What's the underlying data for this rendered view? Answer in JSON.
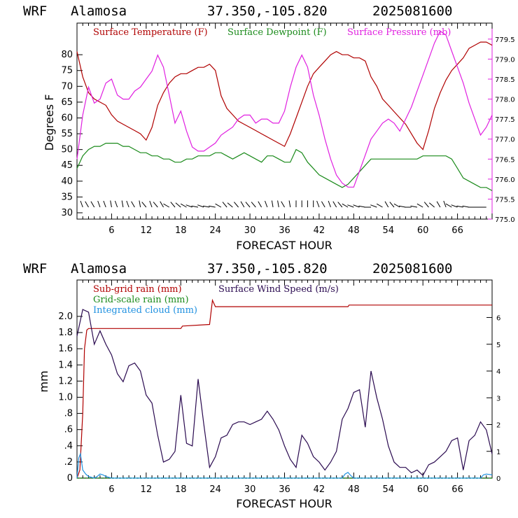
{
  "header": {
    "model": "WRF",
    "site": "Alamosa",
    "coords": "37.350,-105.820",
    "run": "2025081600"
  },
  "colors": {
    "temperature": "#b00000",
    "dewpoint": "#1a8a1a",
    "pressure": "#e020e0",
    "subgrid_rain": "#b00000",
    "gridscale_rain": "#1a8a1a",
    "cloud": "#1e90e0",
    "wind_speed": "#2a0a50"
  },
  "chart_data": [
    {
      "type": "line",
      "xlabel": "FORECAST HOUR",
      "ylabel": "Degrees F",
      "xlim": [
        0,
        72
      ],
      "ylim": [
        28,
        90
      ],
      "xticks": [
        6,
        12,
        18,
        24,
        30,
        36,
        42,
        48,
        54,
        60,
        66
      ],
      "yticks": [
        30,
        35,
        40,
        45,
        50,
        55,
        60,
        65,
        70,
        75,
        80
      ],
      "y2lim": [
        775.0,
        779.9
      ],
      "y2ticks": [
        "775.0",
        "775.5",
        "776.0",
        "776.5",
        "777.0",
        "777.5",
        "778.0",
        "778.5",
        "779.0",
        "779.5"
      ],
      "legend": [
        "Surface Temperature (F)",
        "Surface Dewpoint (F)",
        "Surface Pressure (mb)"
      ],
      "series": [
        {
          "name": "Surface Temperature (F)",
          "x": [
            0,
            1,
            2,
            3,
            4,
            5,
            6,
            7,
            8,
            9,
            10,
            11,
            12,
            13,
            14,
            15,
            16,
            17,
            18,
            19,
            20,
            21,
            22,
            23,
            24,
            25,
            26,
            27,
            28,
            29,
            30,
            31,
            32,
            33,
            34,
            35,
            36,
            37,
            38,
            39,
            40,
            41,
            42,
            43,
            44,
            45,
            46,
            47,
            48,
            49,
            50,
            51,
            52,
            53,
            54,
            55,
            56,
            57,
            58,
            59,
            60,
            61,
            62,
            63,
            64,
            65,
            66,
            67,
            68,
            69,
            70,
            71,
            72
          ],
          "y": [
            81,
            73,
            68,
            66,
            65,
            64,
            61,
            59,
            58,
            57,
            56,
            55,
            53,
            57,
            64,
            68,
            71,
            73,
            74,
            74,
            75,
            76,
            76,
            77,
            75,
            67,
            63,
            61,
            59,
            58,
            57,
            56,
            55,
            54,
            53,
            52,
            51,
            55,
            60,
            65,
            70,
            74,
            76,
            78,
            80,
            81,
            80,
            80,
            79,
            79,
            78,
            73,
            70,
            66,
            64,
            62,
            60,
            58,
            55,
            52,
            50,
            56,
            63,
            68,
            72,
            75,
            77,
            79,
            82,
            83,
            84,
            84,
            83
          ]
        },
        {
          "name": "Surface Dewpoint (F)",
          "x": [
            0,
            1,
            2,
            3,
            4,
            5,
            6,
            7,
            8,
            9,
            10,
            11,
            12,
            13,
            14,
            15,
            16,
            17,
            18,
            19,
            20,
            21,
            22,
            23,
            24,
            25,
            26,
            27,
            28,
            29,
            30,
            31,
            32,
            33,
            34,
            35,
            36,
            37,
            38,
            39,
            40,
            41,
            42,
            43,
            44,
            45,
            46,
            47,
            48,
            49,
            50,
            51,
            52,
            53,
            54,
            55,
            56,
            57,
            58,
            59,
            60,
            61,
            62,
            63,
            64,
            65,
            66,
            67,
            68,
            69,
            70,
            71,
            72
          ],
          "y": [
            44,
            48,
            50,
            51,
            51,
            52,
            52,
            52,
            51,
            51,
            50,
            49,
            49,
            48,
            48,
            47,
            47,
            46,
            46,
            47,
            47,
            48,
            48,
            48,
            49,
            49,
            48,
            47,
            48,
            49,
            48,
            47,
            46,
            48,
            48,
            47,
            46,
            46,
            50,
            49,
            46,
            44,
            42,
            41,
            40,
            39,
            38,
            39,
            41,
            43,
            45,
            47,
            47,
            47,
            47,
            47,
            47,
            47,
            47,
            47,
            48,
            48,
            48,
            48,
            48,
            47,
            44,
            41,
            40,
            39,
            38,
            38,
            37
          ]
        },
        {
          "name": "Surface Pressure (mb)",
          "x": [
            0,
            1,
            2,
            3,
            4,
            5,
            6,
            7,
            8,
            9,
            10,
            11,
            12,
            13,
            14,
            15,
            16,
            17,
            18,
            19,
            20,
            21,
            22,
            23,
            24,
            25,
            26,
            27,
            28,
            29,
            30,
            31,
            32,
            33,
            34,
            35,
            36,
            37,
            38,
            39,
            40,
            41,
            42,
            43,
            44,
            45,
            46,
            47,
            48,
            49,
            50,
            51,
            52,
            53,
            54,
            55,
            56,
            57,
            58,
            59,
            60,
            61,
            62,
            63,
            64,
            65,
            66,
            67,
            68,
            69,
            70,
            71,
            72
          ],
          "y": [
            776.5,
            777.6,
            778.3,
            777.9,
            778.0,
            778.4,
            778.5,
            778.1,
            778.0,
            778.0,
            778.2,
            778.3,
            778.5,
            778.7,
            779.1,
            778.8,
            778.1,
            777.4,
            777.7,
            777.2,
            776.8,
            776.7,
            776.7,
            776.8,
            776.9,
            777.1,
            777.2,
            777.3,
            777.5,
            777.6,
            777.6,
            777.4,
            777.5,
            777.5,
            777.4,
            777.4,
            777.7,
            778.3,
            778.8,
            779.1,
            778.8,
            778.1,
            777.6,
            777.0,
            776.5,
            776.1,
            775.9,
            775.8,
            775.8,
            776.2,
            776.6,
            777.0,
            777.2,
            777.4,
            777.5,
            777.4,
            777.2,
            777.5,
            777.8,
            778.2,
            778.6,
            779.0,
            779.4,
            779.7,
            779.6,
            779.2,
            778.8,
            778.4,
            777.9,
            777.5,
            777.1,
            777.3,
            777.6
          ]
        }
      ],
      "wind_barbs": {
        "note_free": true,
        "hours": [
          1,
          2,
          3,
          4,
          5,
          6,
          7,
          8,
          9,
          10,
          11,
          12,
          13,
          14,
          15,
          16,
          17,
          18,
          19,
          20,
          21,
          22,
          23,
          24,
          25,
          26,
          27,
          28,
          29,
          30,
          31,
          32,
          33,
          34,
          35,
          36,
          37,
          38,
          39,
          40,
          41,
          42,
          43,
          44,
          45,
          46,
          47,
          48,
          49,
          50,
          51,
          52,
          53,
          54,
          55,
          56,
          57,
          58,
          59,
          60,
          61,
          62,
          63,
          64,
          65,
          66,
          67,
          68,
          69,
          70,
          71
        ],
        "direction_deg": [
          340,
          330,
          330,
          340,
          340,
          350,
          340,
          350,
          340,
          330,
          350,
          320,
          340,
          320,
          330,
          300,
          320,
          310,
          300,
          290,
          280,
          290,
          280,
          280,
          300,
          320,
          310,
          320,
          330,
          320,
          320,
          330,
          340,
          350,
          350,
          330,
          350,
          360,
          360,
          360,
          360,
          340,
          330,
          340,
          330,
          320,
          300,
          290,
          290,
          280,
          270,
          290,
          300,
          330,
          320,
          300,
          280,
          270,
          280,
          300,
          320,
          310,
          330,
          340,
          300,
          290,
          280,
          280,
          270,
          270,
          270
        ]
      }
    },
    {
      "type": "line",
      "xlabel": "FORECAST HOUR",
      "ylabel": "mm",
      "xlim": [
        0,
        72
      ],
      "ylim": [
        0,
        2.45
      ],
      "xticks": [
        6,
        12,
        18,
        24,
        30,
        36,
        42,
        48,
        54,
        60,
        66
      ],
      "yticks": [
        0,
        0.2,
        0.4,
        0.6,
        0.8,
        1.0,
        1.2,
        1.4,
        1.6,
        1.8,
        2.0
      ],
      "ytick_labels": [
        "0",
        ".2",
        ".4",
        ".6",
        ".8",
        "1.0",
        "1.2",
        "1.4",
        "1.6",
        "1.8",
        "2.0"
      ],
      "y2lim": [
        0,
        7.4
      ],
      "y2ticks": [
        0,
        1,
        2,
        3,
        4,
        5,
        6
      ],
      "legend": [
        "Sub-grid rain (mm)",
        "Grid-scale rain (mm)",
        "Integrated cloud (mm)",
        "Surface Wind Speed (m/s)"
      ],
      "series": [
        {
          "name": "Sub-grid rain (mm)",
          "x": [
            0,
            0.5,
            1,
            1.3,
            1.7,
            2,
            18,
            18.3,
            23,
            23.5,
            24,
            47,
            47.2,
            72
          ],
          "y": [
            0,
            0.1,
            0.8,
            1.6,
            1.83,
            1.85,
            1.85,
            1.88,
            1.9,
            2.2,
            2.12,
            2.12,
            2.14,
            2.14
          ]
        },
        {
          "name": "Grid-scale rain (mm)",
          "x": [
            0,
            72
          ],
          "y": [
            0,
            0
          ]
        },
        {
          "name": "Integrated cloud (mm)",
          "x": [
            0,
            0.3,
            0.6,
            1,
            1.5,
            2,
            3,
            3.5,
            4,
            4.5,
            5,
            6,
            46,
            46.5,
            47,
            47.5,
            48,
            70,
            70.5,
            71,
            72
          ],
          "y": [
            0,
            0.25,
            0.3,
            0.1,
            0.05,
            0.02,
            0,
            0.02,
            0.05,
            0.04,
            0.02,
            0,
            0,
            0.05,
            0.07,
            0.03,
            0,
            0,
            0.04,
            0.05,
            0.04
          ]
        },
        {
          "name": "Surface Wind Speed (m/s)",
          "axis": "right",
          "x": [
            0,
            1,
            2,
            3,
            4,
            5,
            6,
            7,
            8,
            9,
            10,
            11,
            12,
            13,
            14,
            15,
            16,
            17,
            18,
            19,
            20,
            21,
            22,
            23,
            24,
            25,
            26,
            27,
            28,
            29,
            30,
            31,
            32,
            33,
            34,
            35,
            36,
            37,
            38,
            39,
            40,
            41,
            42,
            43,
            44,
            45,
            46,
            47,
            48,
            49,
            50,
            51,
            52,
            53,
            54,
            55,
            56,
            57,
            58,
            59,
            60,
            61,
            62,
            63,
            64,
            65,
            66,
            67,
            68,
            69,
            70,
            71,
            72
          ],
          "y": [
            5.3,
            6.3,
            6.2,
            5.0,
            5.5,
            5.0,
            4.6,
            3.9,
            3.6,
            4.2,
            4.3,
            4.0,
            3.1,
            2.8,
            1.6,
            0.6,
            0.7,
            1.0,
            3.1,
            1.3,
            1.2,
            3.7,
            2.0,
            0.4,
            0.8,
            1.5,
            1.6,
            2.0,
            2.1,
            2.1,
            2.0,
            2.1,
            2.2,
            2.5,
            2.2,
            1.8,
            1.2,
            0.7,
            0.4,
            1.6,
            1.3,
            0.8,
            0.6,
            0.3,
            0.6,
            1.0,
            2.2,
            2.6,
            3.2,
            3.3,
            1.9,
            4.0,
            3.0,
            2.2,
            1.2,
            0.6,
            0.4,
            0.4,
            0.2,
            0.3,
            0.1,
            0.5,
            0.6,
            0.8,
            1.0,
            1.4,
            1.5,
            0.3,
            1.4,
            1.6,
            2.1,
            1.8,
            0.9
          ]
        }
      ]
    }
  ]
}
